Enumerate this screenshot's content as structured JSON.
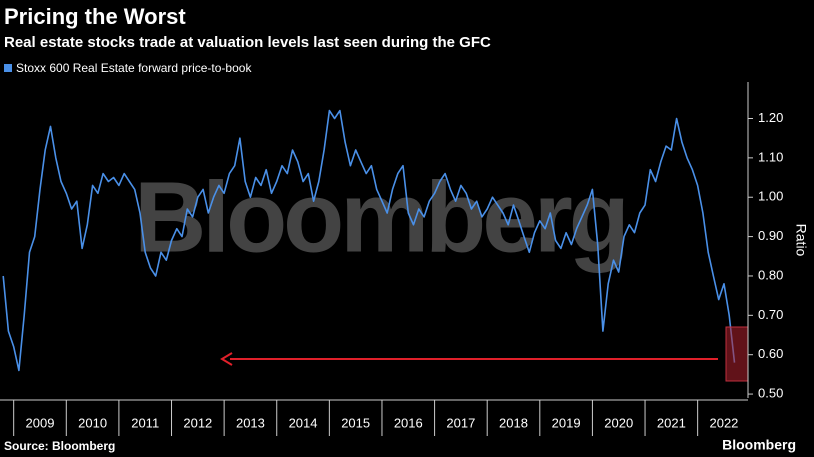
{
  "chart_data": {
    "type": "line",
    "title": "Pricing the Worst",
    "subtitle": "Real estate stocks trade at valuation levels last seen during the GFC",
    "y_label": "Ratio",
    "source": "Source: Bloomberg",
    "brand": "Bloomberg",
    "watermark": "Bloomberg",
    "x": [
      2008.8,
      2008.9,
      2009.0,
      2009.1,
      2009.2,
      2009.3,
      2009.4,
      2009.5,
      2009.6,
      2009.7,
      2009.8,
      2009.9,
      2010.0,
      2010.1,
      2010.2,
      2010.3,
      2010.4,
      2010.5,
      2010.6,
      2010.7,
      2010.8,
      2010.9,
      2011.0,
      2011.1,
      2011.2,
      2011.3,
      2011.4,
      2011.5,
      2011.6,
      2011.7,
      2011.8,
      2011.9,
      2012.0,
      2012.1,
      2012.2,
      2012.3,
      2012.4,
      2012.5,
      2012.6,
      2012.7,
      2012.8,
      2012.9,
      2013.0,
      2013.1,
      2013.2,
      2013.3,
      2013.4,
      2013.5,
      2013.6,
      2013.7,
      2013.8,
      2013.9,
      2014.0,
      2014.1,
      2014.2,
      2014.3,
      2014.4,
      2014.5,
      2014.6,
      2014.7,
      2014.8,
      2014.9,
      2015.0,
      2015.1,
      2015.2,
      2015.3,
      2015.4,
      2015.5,
      2015.6,
      2015.7,
      2015.8,
      2015.9,
      2016.0,
      2016.1,
      2016.2,
      2016.3,
      2016.4,
      2016.5,
      2016.6,
      2016.7,
      2016.8,
      2016.9,
      2017.0,
      2017.1,
      2017.2,
      2017.3,
      2017.4,
      2017.5,
      2017.6,
      2017.7,
      2017.8,
      2017.9,
      2018.0,
      2018.1,
      2018.2,
      2018.3,
      2018.4,
      2018.5,
      2018.6,
      2018.7,
      2018.8,
      2018.9,
      2019.0,
      2019.1,
      2019.2,
      2019.3,
      2019.4,
      2019.5,
      2019.6,
      2019.7,
      2019.8,
      2019.9,
      2020.0,
      2020.1,
      2020.2,
      2020.3,
      2020.4,
      2020.5,
      2020.6,
      2020.7,
      2020.8,
      2020.9,
      2021.0,
      2021.1,
      2021.2,
      2021.3,
      2021.4,
      2021.5,
      2021.6,
      2021.7,
      2021.8,
      2021.9,
      2022.0,
      2022.1,
      2022.2,
      2022.3,
      2022.4,
      2022.5,
      2022.6,
      2022.7
    ],
    "series": [
      {
        "name": "Stoxx 600 Real Estate forward price-to-book",
        "color": "#4a90e8",
        "values": [
          0.8,
          0.66,
          0.62,
          0.56,
          0.7,
          0.86,
          0.9,
          1.02,
          1.12,
          1.18,
          1.1,
          1.04,
          1.01,
          0.97,
          0.99,
          0.87,
          0.93,
          1.03,
          1.01,
          1.06,
          1.04,
          1.05,
          1.03,
          1.06,
          1.04,
          1.02,
          0.96,
          0.86,
          0.82,
          0.8,
          0.86,
          0.84,
          0.89,
          0.92,
          0.9,
          0.97,
          0.95,
          1.0,
          1.02,
          0.96,
          1.0,
          1.03,
          1.01,
          1.06,
          1.08,
          1.15,
          1.04,
          1.0,
          1.05,
          1.03,
          1.07,
          1.01,
          1.04,
          1.08,
          1.06,
          1.12,
          1.09,
          1.04,
          1.06,
          0.99,
          1.04,
          1.12,
          1.22,
          1.2,
          1.22,
          1.14,
          1.08,
          1.12,
          1.09,
          1.06,
          1.08,
          1.02,
          0.99,
          0.96,
          1.02,
          1.06,
          1.08,
          0.96,
          0.93,
          0.97,
          0.95,
          0.99,
          1.01,
          1.04,
          1.06,
          1.02,
          0.99,
          1.03,
          1.01,
          0.97,
          0.99,
          0.95,
          0.97,
          1.0,
          0.98,
          0.96,
          0.93,
          0.98,
          0.94,
          0.9,
          0.86,
          0.91,
          0.94,
          0.92,
          0.96,
          0.89,
          0.87,
          0.91,
          0.88,
          0.92,
          0.95,
          0.98,
          1.02,
          0.88,
          0.66,
          0.78,
          0.84,
          0.81,
          0.9,
          0.93,
          0.91,
          0.96,
          0.98,
          1.07,
          1.04,
          1.09,
          1.13,
          1.12,
          1.2,
          1.14,
          1.1,
          1.07,
          1.03,
          0.96,
          0.86,
          0.8,
          0.74,
          0.78,
          0.7,
          0.58
        ]
      }
    ],
    "xlim": [
      2008.74,
      2022.9
    ],
    "xticks": [
      {
        "value": 2009.5,
        "label": "2009"
      },
      {
        "value": 2010.5,
        "label": "2010"
      },
      {
        "value": 2011.5,
        "label": "2011"
      },
      {
        "value": 2012.5,
        "label": "2012"
      },
      {
        "value": 2013.5,
        "label": "2013"
      },
      {
        "value": 2014.5,
        "label": "2014"
      },
      {
        "value": 2015.5,
        "label": "2015"
      },
      {
        "value": 2016.5,
        "label": "2016"
      },
      {
        "value": 2017.5,
        "label": "2017"
      },
      {
        "value": 2018.5,
        "label": "2018"
      },
      {
        "value": 2019.5,
        "label": "2019"
      },
      {
        "value": 2020.5,
        "label": "2020"
      },
      {
        "value": 2021.5,
        "label": "2021"
      },
      {
        "value": 2022.5,
        "label": "2022"
      }
    ],
    "ylim": [
      0.49,
      1.28
    ],
    "yticks": [
      {
        "value": 0.5,
        "label": "0.50"
      },
      {
        "value": 0.6,
        "label": "0.60"
      },
      {
        "value": 0.7,
        "label": "0.70"
      },
      {
        "value": 0.8,
        "label": "0.80"
      },
      {
        "value": 0.9,
        "label": "0.90"
      },
      {
        "value": 1.0,
        "label": "1.00"
      },
      {
        "value": 1.1,
        "label": "1.10"
      },
      {
        "value": 1.2,
        "label": "1.20"
      }
    ]
  }
}
